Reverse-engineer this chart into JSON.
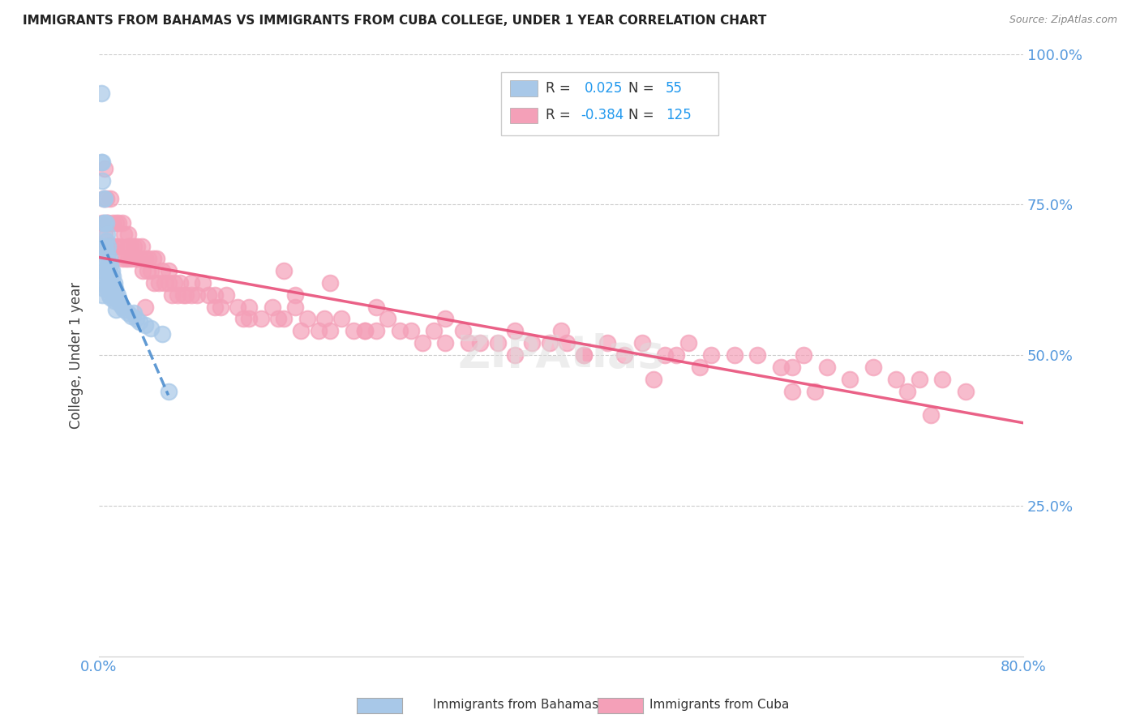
{
  "title": "IMMIGRANTS FROM BAHAMAS VS IMMIGRANTS FROM CUBA COLLEGE, UNDER 1 YEAR CORRELATION CHART",
  "source": "Source: ZipAtlas.com",
  "ylabel": "College, Under 1 year",
  "x_min": 0.0,
  "x_max": 0.8,
  "y_min": 0.0,
  "y_max": 1.0,
  "bahamas_R": 0.025,
  "bahamas_N": 55,
  "cuba_R": -0.384,
  "cuba_N": 125,
  "bahamas_color": "#a8c8e8",
  "cuba_color": "#f4a0b8",
  "bahamas_line_color": "#4488cc",
  "cuba_line_color": "#e8507a",
  "accent_color": "#5599dd",
  "bahamas_scatter_x": [
    0.002,
    0.002,
    0.003,
    0.003,
    0.003,
    0.004,
    0.004,
    0.004,
    0.004,
    0.004,
    0.005,
    0.005,
    0.005,
    0.005,
    0.005,
    0.006,
    0.006,
    0.006,
    0.006,
    0.007,
    0.007,
    0.007,
    0.007,
    0.008,
    0.008,
    0.008,
    0.009,
    0.009,
    0.009,
    0.01,
    0.01,
    0.01,
    0.011,
    0.011,
    0.012,
    0.012,
    0.013,
    0.013,
    0.014,
    0.015,
    0.015,
    0.016,
    0.017,
    0.018,
    0.02,
    0.022,
    0.025,
    0.028,
    0.03,
    0.032,
    0.035,
    0.04,
    0.045,
    0.055,
    0.06
  ],
  "bahamas_scatter_y": [
    0.935,
    0.82,
    0.82,
    0.79,
    0.6,
    0.76,
    0.72,
    0.68,
    0.64,
    0.61,
    0.76,
    0.72,
    0.68,
    0.65,
    0.62,
    0.72,
    0.69,
    0.66,
    0.63,
    0.7,
    0.67,
    0.64,
    0.61,
    0.68,
    0.65,
    0.62,
    0.66,
    0.63,
    0.6,
    0.65,
    0.625,
    0.595,
    0.64,
    0.61,
    0.63,
    0.6,
    0.62,
    0.59,
    0.61,
    0.605,
    0.575,
    0.6,
    0.59,
    0.585,
    0.58,
    0.575,
    0.57,
    0.565,
    0.57,
    0.56,
    0.555,
    0.55,
    0.545,
    0.535,
    0.44
  ],
  "cuba_scatter_x": [
    0.003,
    0.004,
    0.005,
    0.005,
    0.006,
    0.007,
    0.007,
    0.008,
    0.009,
    0.01,
    0.01,
    0.012,
    0.013,
    0.015,
    0.015,
    0.017,
    0.018,
    0.02,
    0.02,
    0.022,
    0.023,
    0.025,
    0.025,
    0.027,
    0.028,
    0.03,
    0.032,
    0.033,
    0.035,
    0.037,
    0.038,
    0.04,
    0.042,
    0.043,
    0.045,
    0.047,
    0.048,
    0.05,
    0.052,
    0.055,
    0.057,
    0.06,
    0.063,
    0.065,
    0.068,
    0.07,
    0.073,
    0.075,
    0.08,
    0.085,
    0.09,
    0.095,
    0.1,
    0.105,
    0.11,
    0.12,
    0.125,
    0.13,
    0.14,
    0.15,
    0.155,
    0.16,
    0.17,
    0.175,
    0.18,
    0.19,
    0.195,
    0.2,
    0.21,
    0.22,
    0.23,
    0.24,
    0.25,
    0.26,
    0.27,
    0.28,
    0.29,
    0.3,
    0.315,
    0.33,
    0.345,
    0.36,
    0.375,
    0.39,
    0.405,
    0.42,
    0.44,
    0.455,
    0.47,
    0.49,
    0.51,
    0.53,
    0.55,
    0.57,
    0.59,
    0.61,
    0.63,
    0.65,
    0.67,
    0.69,
    0.71,
    0.73,
    0.75,
    0.17,
    0.04,
    0.08,
    0.13,
    0.23,
    0.32,
    0.42,
    0.52,
    0.62,
    0.72,
    0.2,
    0.3,
    0.4,
    0.5,
    0.6,
    0.7,
    0.025,
    0.06,
    0.1,
    0.16,
    0.24,
    0.36,
    0.48,
    0.6
  ],
  "cuba_scatter_y": [
    0.72,
    0.76,
    0.81,
    0.7,
    0.76,
    0.72,
    0.68,
    0.72,
    0.68,
    0.76,
    0.68,
    0.72,
    0.68,
    0.72,
    0.68,
    0.72,
    0.68,
    0.72,
    0.66,
    0.7,
    0.66,
    0.7,
    0.66,
    0.68,
    0.66,
    0.68,
    0.66,
    0.68,
    0.66,
    0.68,
    0.64,
    0.66,
    0.64,
    0.66,
    0.64,
    0.66,
    0.62,
    0.66,
    0.62,
    0.64,
    0.62,
    0.62,
    0.6,
    0.62,
    0.6,
    0.62,
    0.6,
    0.6,
    0.62,
    0.6,
    0.62,
    0.6,
    0.6,
    0.58,
    0.6,
    0.58,
    0.56,
    0.58,
    0.56,
    0.58,
    0.56,
    0.56,
    0.58,
    0.54,
    0.56,
    0.54,
    0.56,
    0.54,
    0.56,
    0.54,
    0.54,
    0.54,
    0.56,
    0.54,
    0.54,
    0.52,
    0.54,
    0.52,
    0.54,
    0.52,
    0.52,
    0.54,
    0.52,
    0.52,
    0.52,
    0.5,
    0.52,
    0.5,
    0.52,
    0.5,
    0.52,
    0.5,
    0.5,
    0.5,
    0.48,
    0.5,
    0.48,
    0.46,
    0.48,
    0.46,
    0.46,
    0.46,
    0.44,
    0.6,
    0.58,
    0.6,
    0.56,
    0.54,
    0.52,
    0.5,
    0.48,
    0.44,
    0.4,
    0.62,
    0.56,
    0.54,
    0.5,
    0.48,
    0.44,
    0.68,
    0.64,
    0.58,
    0.64,
    0.58,
    0.5,
    0.46,
    0.44
  ]
}
